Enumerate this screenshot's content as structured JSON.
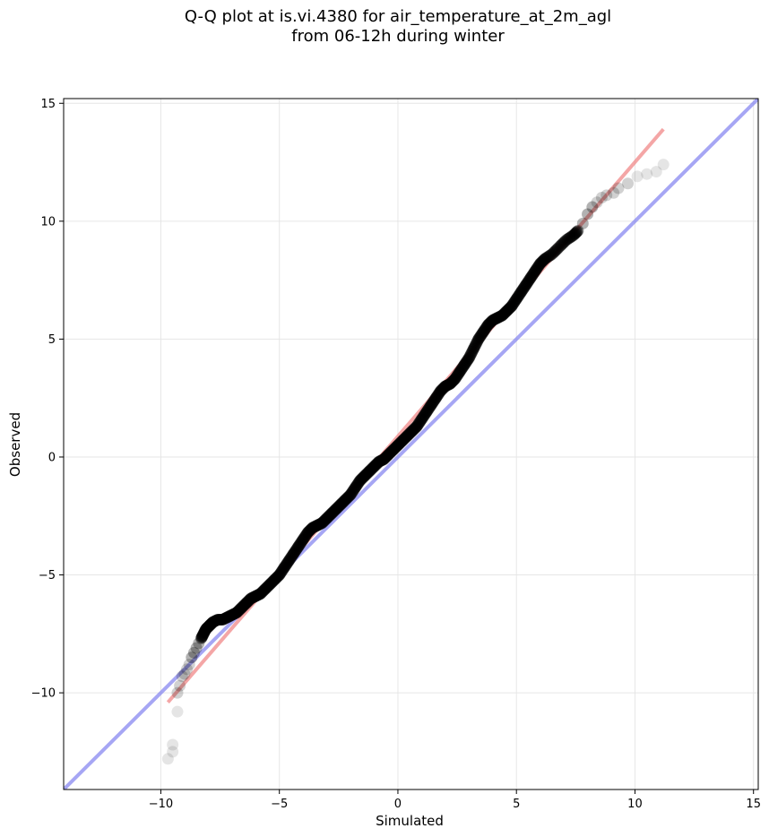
{
  "title_line1": "Q-Q plot at is.vi.4380 for air_temperature_at_2m_agl",
  "title_line2": "from 06-12h during winter",
  "chart_data": {
    "type": "scatter",
    "title": "Q-Q plot at is.vi.4380 for air_temperature_at_2m_agl from 06-12h during winter",
    "xlabel": "Simulated",
    "ylabel": "Observed",
    "xlim": [
      -14.1,
      15.2
    ],
    "ylim": [
      -14.1,
      15.2
    ],
    "xticks": [
      -10,
      -5,
      0,
      5,
      10,
      15
    ],
    "yticks": [
      -10,
      -5,
      0,
      5,
      10,
      15
    ],
    "grid": true,
    "colors": {
      "points": "#000000",
      "fit_line": "#f08080",
      "identity_line": "#8080f0"
    },
    "fit_line": {
      "x": [
        -9.7,
        11.2
      ],
      "y": [
        -10.4,
        13.9
      ]
    },
    "identity_line": {
      "x": [
        -14.1,
        15.2
      ],
      "y": [
        -14.1,
        15.2
      ]
    },
    "series": [
      {
        "x": [
          -9.7,
          -9.5,
          -9.5,
          -9.3,
          -9.3,
          -9.2,
          -9.1,
          -9.0,
          -8.9,
          -8.8,
          -8.7,
          -8.6,
          -8.5,
          -8.4,
          -8.3,
          -8.2,
          -8.1,
          -8.0,
          -7.9,
          -7.8,
          -7.6,
          -7.4,
          -7.2,
          -7.0,
          -6.8,
          -6.6,
          -6.4,
          -6.2,
          -6.0,
          -5.8,
          -5.6,
          -5.4,
          -5.2,
          -5.0,
          -4.8,
          -4.6,
          -4.4,
          -4.2,
          -4.0,
          -3.8,
          -3.6,
          -3.4,
          -3.2,
          -3.0,
          -2.8,
          -2.6,
          -2.4,
          -2.2,
          -2.0,
          -1.8,
          -1.6,
          -1.4,
          -1.2,
          -1.0,
          -0.8,
          -0.6,
          -0.4,
          -0.2,
          0.0,
          0.2,
          0.4,
          0.6,
          0.8,
          1.0,
          1.2,
          1.4,
          1.6,
          1.8,
          2.0,
          2.2,
          2.4,
          2.6,
          2.8,
          3.0,
          3.2,
          3.4,
          3.6,
          3.8,
          4.0,
          4.2,
          4.4,
          4.6,
          4.8,
          5.0,
          5.2,
          5.4,
          5.6,
          5.8,
          6.0,
          6.2,
          6.5,
          6.8,
          7.1,
          7.4,
          7.6,
          7.8,
          8.0,
          8.2,
          8.4,
          8.6,
          8.8,
          9.1,
          9.3,
          9.7,
          10.1,
          10.5,
          10.9,
          11.2
        ],
        "y": [
          -12.8,
          -12.5,
          -12.2,
          -10.8,
          -10.0,
          -9.7,
          -9.3,
          -9.2,
          -9.0,
          -8.8,
          -8.5,
          -8.3,
          -8.1,
          -7.9,
          -7.7,
          -7.5,
          -7.3,
          -7.2,
          -7.1,
          -7.0,
          -6.9,
          -6.9,
          -6.8,
          -6.7,
          -6.6,
          -6.4,
          -6.2,
          -6.0,
          -5.9,
          -5.8,
          -5.6,
          -5.4,
          -5.2,
          -5.0,
          -4.7,
          -4.4,
          -4.1,
          -3.8,
          -3.5,
          -3.2,
          -3.0,
          -2.9,
          -2.8,
          -2.6,
          -2.4,
          -2.2,
          -2.0,
          -1.8,
          -1.6,
          -1.3,
          -1.0,
          -0.8,
          -0.6,
          -0.4,
          -0.2,
          -0.1,
          0.1,
          0.3,
          0.5,
          0.7,
          0.9,
          1.1,
          1.3,
          1.6,
          1.9,
          2.2,
          2.5,
          2.8,
          3.0,
          3.1,
          3.3,
          3.6,
          3.9,
          4.2,
          4.6,
          5.0,
          5.3,
          5.6,
          5.8,
          5.9,
          6.0,
          6.2,
          6.4,
          6.7,
          7.0,
          7.3,
          7.6,
          7.9,
          8.2,
          8.4,
          8.6,
          8.9,
          9.2,
          9.4,
          9.6,
          9.9,
          10.3,
          10.6,
          10.8,
          11.0,
          11.1,
          11.2,
          11.4,
          11.6,
          11.9,
          12.0,
          12.1,
          12.4
        ]
      }
    ]
  }
}
